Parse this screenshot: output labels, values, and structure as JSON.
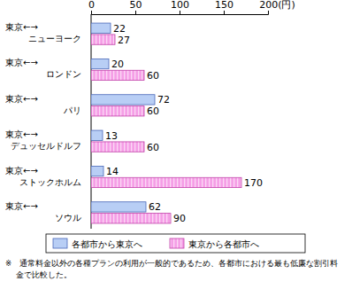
{
  "chart_data": {
    "type": "bar",
    "orientation": "horizontal",
    "categories": [
      "東京←→\nニューヨーク",
      "東京←→\nロンドン",
      "東京←→\nパリ",
      "東京←→\nデュッセルドルフ",
      "東京←→\nストックホルム",
      "東京←→\nソウル"
    ],
    "series": [
      {
        "name": "各都市から東京へ",
        "color": "#b8cef5",
        "values": [
          22,
          20,
          72,
          13,
          14,
          62
        ]
      },
      {
        "name": "東京から各都市へ",
        "color": "#f59ee6",
        "values": [
          27,
          60,
          60,
          60,
          170,
          90
        ]
      }
    ],
    "xlim": [
      0,
      200
    ],
    "xticks": [
      0,
      50,
      100,
      150,
      {
        "value": 200,
        "label": "200(円)"
      }
    ],
    "grid": false,
    "data_labels": true,
    "legend": "bottom",
    "annotations": [
      "※　通常料金以外の各種プランの利用が一般的であるため、各都市における最も低廉な割引料金で比較した。"
    ]
  }
}
